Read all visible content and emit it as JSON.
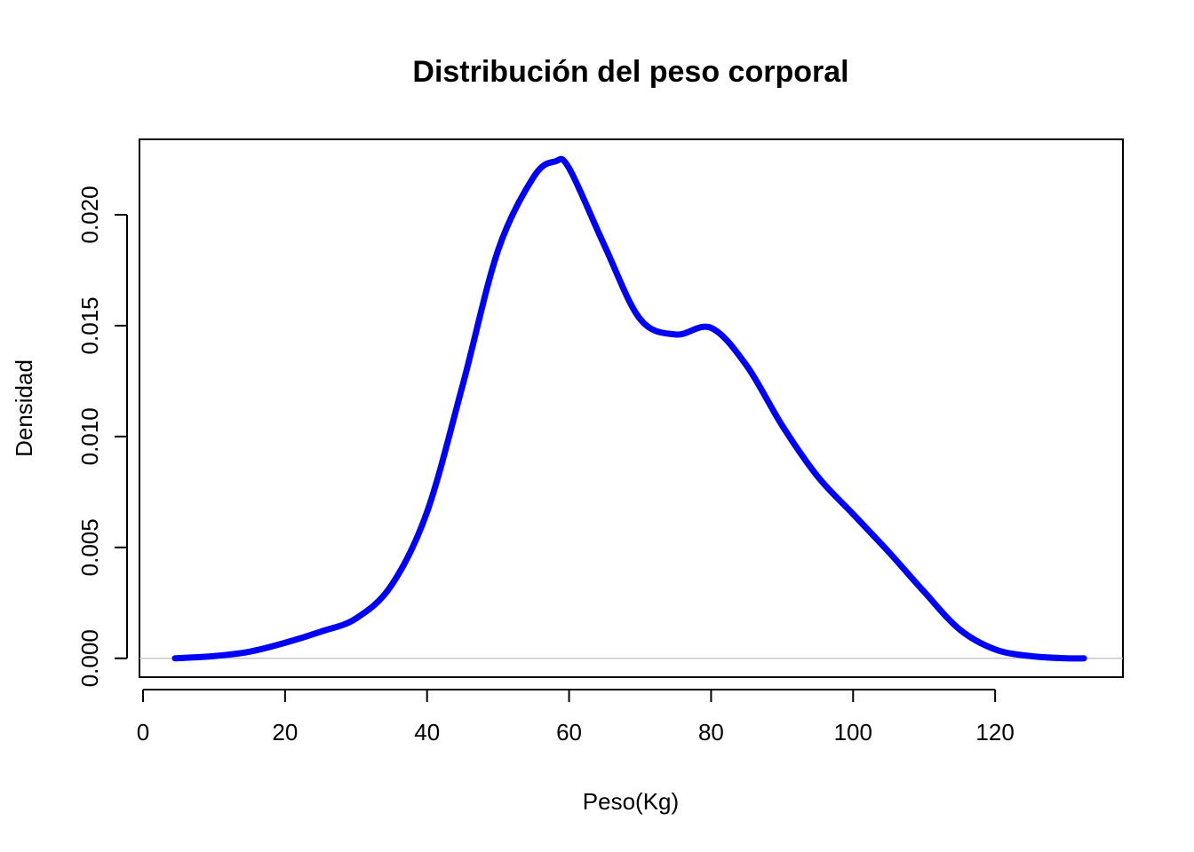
{
  "chart_data": {
    "type": "line",
    "title": "Distribución del peso corporal",
    "xlabel": "Peso(Kg)",
    "ylabel": "Densidad",
    "xlim": [
      -0.5,
      138
    ],
    "ylim": [
      -0.00085,
      0.0234
    ],
    "x_ticks": [
      "0",
      "20",
      "40",
      "60",
      "80",
      "100",
      "120"
    ],
    "y_ticks": [
      "0.000",
      "0.005",
      "0.010",
      "0.015",
      "0.020"
    ],
    "grid": false,
    "baseline_y": 0,
    "series": [
      {
        "color": "#0000ff",
        "x": [
          4.5,
          10,
          15,
          20,
          25,
          30,
          35,
          40,
          45,
          50,
          55,
          58,
          60,
          65,
          70,
          75,
          80,
          85,
          90,
          95,
          100,
          105,
          110,
          115,
          120,
          125,
          130,
          132.5
        ],
        "y": [
          0.0,
          0.0001,
          0.0003,
          0.0007,
          0.0012,
          0.0018,
          0.0033,
          0.0066,
          0.0123,
          0.0184,
          0.0217,
          0.0224,
          0.0221,
          0.0186,
          0.0153,
          0.0146,
          0.0149,
          0.0132,
          0.0105,
          0.0082,
          0.0065,
          0.0048,
          0.003,
          0.0013,
          0.0004,
          0.0001,
          0.0,
          0.0
        ]
      }
    ]
  }
}
